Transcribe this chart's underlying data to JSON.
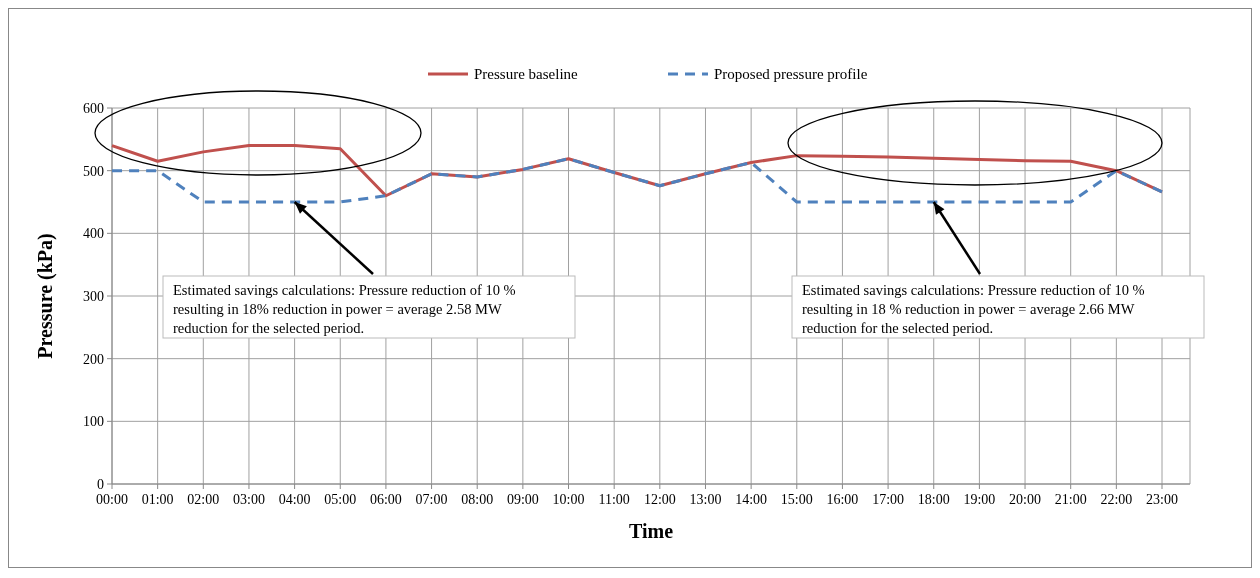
{
  "chart_data": {
    "type": "line",
    "xlabel": "Time",
    "ylabel": "Pressure (kPa)",
    "categories": [
      "00:00",
      "01:00",
      "02:00",
      "03:00",
      "04:00",
      "05:00",
      "06:00",
      "07:00",
      "08:00",
      "09:00",
      "10:00",
      "11:00",
      "12:00",
      "13:00",
      "14:00",
      "15:00",
      "16:00",
      "17:00",
      "18:00",
      "19:00",
      "20:00",
      "21:00",
      "22:00",
      "23:00"
    ],
    "series": [
      {
        "name": "Pressure baseline",
        "color": "#c0504d",
        "line_style": "solid",
        "values": [
          540,
          515,
          530,
          540,
          540,
          535,
          460,
          495,
          490,
          502,
          519,
          497,
          476,
          495,
          513,
          524,
          523,
          522,
          520,
          518,
          516,
          515,
          500,
          466
        ]
      },
      {
        "name": "Proposed pressure profile",
        "color": "#4f81bd",
        "line_style": "dashed",
        "values": [
          500,
          500,
          450,
          450,
          450,
          450,
          460,
          495,
          490,
          502,
          519,
          497,
          476,
          495,
          513,
          450,
          450,
          450,
          450,
          450,
          450,
          450,
          500,
          466
        ]
      }
    ],
    "ylim": [
      0,
      600
    ],
    "yticks": [
      0,
      100,
      200,
      300,
      400,
      500,
      600
    ],
    "grid": true,
    "legend": "top",
    "annotations": [
      {
        "text": "Estimated savings calculations: Pressure reduction of 10 % resulting in 18% reduction in power = average 2.58 MW reduction for the selected period.",
        "x": "04:00",
        "y": 450
      },
      {
        "text": "Estimated savings calculations: Pressure reduction of 10 % resulting in 18 % reduction in power = average  2.66 MW reduction for the selected period.",
        "x": "18:00",
        "y": 450
      }
    ]
  }
}
